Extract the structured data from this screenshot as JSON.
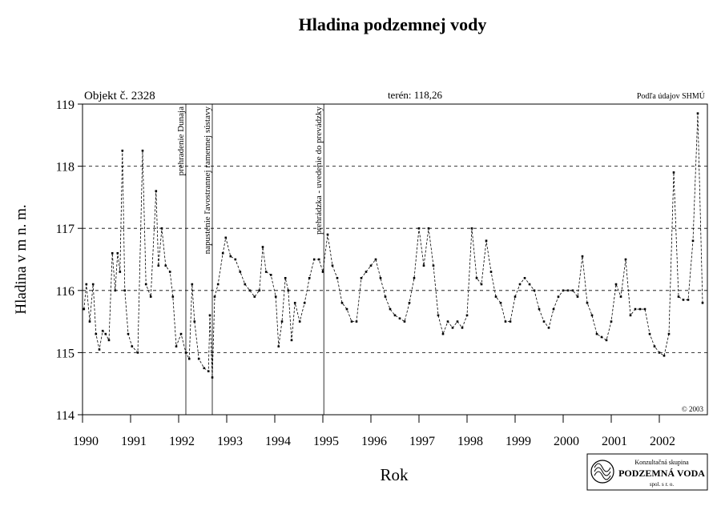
{
  "chart_data": {
    "type": "line",
    "title": "Hladina podzemnej vody",
    "object_label": "Objekt č. 2328",
    "terrain_label": "terén: 118,26",
    "source_label": "Podľa údajov SHMÚ",
    "copyright": "© 2003",
    "ylabel": "Hladina v m n. m.",
    "xlabel": "Rok",
    "logo": {
      "line1": "Konzultačná skupina",
      "line2": "PODZEMNÁ VODA",
      "line3": "spol. s r. o."
    },
    "xlim": [
      1990,
      2003
    ],
    "ylim": [
      114,
      119
    ],
    "xticks": [
      1990,
      1991,
      1992,
      1993,
      1994,
      1995,
      1996,
      1997,
      1998,
      1999,
      2000,
      2001,
      2002
    ],
    "yticks": [
      114,
      115,
      116,
      117,
      118,
      119
    ],
    "grid": true,
    "annotations": [
      {
        "text": "prehradenie Dunaja",
        "x": 1992.15
      },
      {
        "text": "napustenie ľavostrannej ramennej sústavy",
        "x": 1992.7
      },
      {
        "text": "prehrádzka - uvedenie do prevádzky",
        "x": 1995.02
      }
    ],
    "series": [
      {
        "color": "#000000",
        "x": [
          1990.03,
          1990.08,
          1990.15,
          1990.22,
          1990.28,
          1990.35,
          1990.42,
          1990.48,
          1990.55,
          1990.62,
          1990.68,
          1990.73,
          1990.78,
          1990.83,
          1990.88,
          1990.95,
          1991.03,
          1991.15,
          1991.25,
          1991.32,
          1991.42,
          1991.53,
          1991.58,
          1991.65,
          1991.73,
          1991.82,
          1991.88,
          1991.95,
          1992.05,
          1992.15,
          1992.22,
          1992.28,
          1992.33,
          1992.42,
          1992.53,
          1992.62,
          1992.65,
          1992.7,
          1992.75,
          1992.82,
          1992.92,
          1992.98,
          1993.08,
          1993.18,
          1993.28,
          1993.38,
          1993.48,
          1993.58,
          1993.68,
          1993.75,
          1993.82,
          1993.92,
          1994.02,
          1994.08,
          1994.15,
          1994.22,
          1994.28,
          1994.35,
          1994.42,
          1994.52,
          1994.62,
          1994.72,
          1994.82,
          1994.92,
          1995.0,
          1995.1,
          1995.2,
          1995.3,
          1995.4,
          1995.5,
          1995.6,
          1995.7,
          1995.8,
          1995.9,
          1996.0,
          1996.1,
          1996.2,
          1996.3,
          1996.4,
          1996.5,
          1996.6,
          1996.7,
          1996.8,
          1996.9,
          1997.0,
          1997.1,
          1997.2,
          1997.3,
          1997.4,
          1997.5,
          1997.6,
          1997.7,
          1997.8,
          1997.9,
          1998.0,
          1998.1,
          1998.2,
          1998.3,
          1998.4,
          1998.5,
          1998.6,
          1998.7,
          1998.8,
          1998.9,
          1999.0,
          1999.1,
          1999.2,
          1999.3,
          1999.4,
          1999.5,
          1999.6,
          1999.7,
          1999.8,
          1999.9,
          2000.0,
          2000.1,
          2000.2,
          2000.3,
          2000.4,
          2000.5,
          2000.6,
          2000.7,
          2000.8,
          2000.9,
          2001.0,
          2001.1,
          2001.2,
          2001.3,
          2001.4,
          2001.5,
          2001.6,
          2001.7,
          2001.8,
          2001.9,
          2002.0,
          2002.1,
          2002.2,
          2002.3,
          2002.4,
          2002.5,
          2002.6,
          2002.7,
          2002.8,
          2002.9
        ],
        "values": [
          115.7,
          116.1,
          115.5,
          116.1,
          115.3,
          115.05,
          115.35,
          115.3,
          115.2,
          116.6,
          116.0,
          116.6,
          116.3,
          118.25,
          116.0,
          115.3,
          115.1,
          115.0,
          118.25,
          116.1,
          115.9,
          117.6,
          116.4,
          117.0,
          116.4,
          116.3,
          115.9,
          115.1,
          115.3,
          115.0,
          114.9,
          116.1,
          115.5,
          114.9,
          114.75,
          114.7,
          115.6,
          114.6,
          115.9,
          116.1,
          116.6,
          116.85,
          116.55,
          116.5,
          116.3,
          116.1,
          116.0,
          115.9,
          116.0,
          116.7,
          116.3,
          116.25,
          115.9,
          115.1,
          115.5,
          116.2,
          116.0,
          115.2,
          115.8,
          115.5,
          115.8,
          116.2,
          116.5,
          116.5,
          116.3,
          116.9,
          116.4,
          116.2,
          115.8,
          115.7,
          115.5,
          115.5,
          116.2,
          116.3,
          116.4,
          116.5,
          116.2,
          115.9,
          115.7,
          115.6,
          115.55,
          115.5,
          115.8,
          116.2,
          117.0,
          116.4,
          117.0,
          116.4,
          115.6,
          115.3,
          115.5,
          115.4,
          115.5,
          115.4,
          115.6,
          117.0,
          116.2,
          116.1,
          116.8,
          116.3,
          115.9,
          115.8,
          115.5,
          115.5,
          115.9,
          116.1,
          116.2,
          116.1,
          116.0,
          115.7,
          115.5,
          115.4,
          115.7,
          115.9,
          116.0,
          116.0,
          116.0,
          115.9,
          116.55,
          115.8,
          115.6,
          115.3,
          115.25,
          115.2,
          115.5,
          116.1,
          115.9,
          116.5,
          115.6,
          115.7,
          115.7,
          115.7,
          115.3,
          115.1,
          115.0,
          114.95,
          115.3,
          117.9,
          115.9,
          115.85,
          115.85,
          116.8,
          118.85,
          115.8
        ]
      }
    ]
  }
}
